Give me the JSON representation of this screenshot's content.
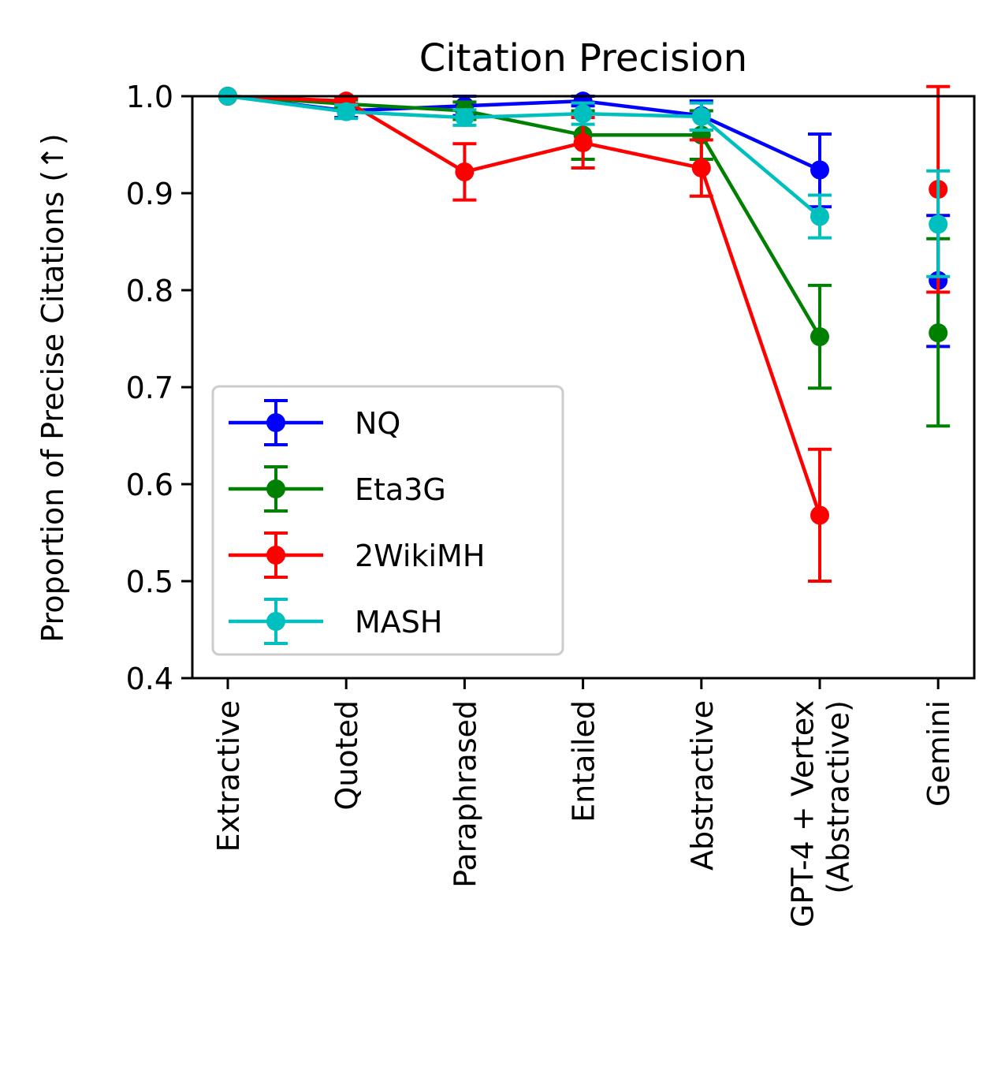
{
  "chart_data": {
    "type": "line",
    "title": "Citation Precision",
    "xlabel": "",
    "ylabel": "Proportion of Precise Citations (↑)",
    "ylim": [
      0.4,
      1.0
    ],
    "yticks": [
      "0.4",
      "0.5",
      "0.6",
      "0.7",
      "0.8",
      "0.9",
      "1.0"
    ],
    "categories": [
      "Extractive",
      "Quoted",
      "Paraphrased",
      "Entailed",
      "Abstractive",
      "GPT-4 + Vertex (Abstractive)",
      "Gemini"
    ],
    "category_lines": [
      [
        "Extractive"
      ],
      [
        "Quoted"
      ],
      [
        "Paraphrased"
      ],
      [
        "Entailed"
      ],
      [
        "Abstractive"
      ],
      [
        "GPT-4 + Vertex",
        "(Abstractive)"
      ],
      [
        "Gemini"
      ]
    ],
    "connected_through_index": 5,
    "legend_position": "lower left",
    "grid": false,
    "series": [
      {
        "name": "NQ",
        "color": "#0000ff",
        "values": [
          1.0,
          0.985,
          0.99,
          0.995,
          0.98,
          0.924,
          0.81
        ],
        "err_low": [
          0.0,
          0.007,
          0.01,
          0.005,
          0.015,
          0.038,
          0.068
        ],
        "err_high": [
          0.0,
          0.007,
          0.01,
          0.005,
          0.015,
          0.037,
          0.067
        ]
      },
      {
        "name": "Eta3G",
        "color": "#008000",
        "values": [
          1.0,
          0.992,
          0.985,
          0.96,
          0.96,
          0.752,
          0.756
        ],
        "err_low": [
          0.0,
          0.004,
          0.009,
          0.025,
          0.025,
          0.053,
          0.096
        ],
        "err_high": [
          0.0,
          0.004,
          0.009,
          0.025,
          0.025,
          0.053,
          0.097
        ]
      },
      {
        "name": "2WikiMH",
        "color": "#ff0000",
        "values": [
          1.0,
          0.995,
          0.922,
          0.952,
          0.926,
          0.568,
          0.904
        ],
        "err_low": [
          0.0,
          0.003,
          0.029,
          0.026,
          0.029,
          0.068,
          0.106
        ],
        "err_high": [
          0.0,
          0.003,
          0.029,
          0.026,
          0.029,
          0.068,
          0.106
        ]
      },
      {
        "name": "MASH",
        "color": "#00bfbf",
        "values": [
          1.0,
          0.984,
          0.978,
          0.982,
          0.979,
          0.876,
          0.868
        ],
        "err_low": [
          0.0,
          0.007,
          0.008,
          0.011,
          0.014,
          0.022,
          0.054
        ],
        "err_high": [
          0.0,
          0.007,
          0.008,
          0.011,
          0.014,
          0.022,
          0.055
        ]
      }
    ]
  }
}
